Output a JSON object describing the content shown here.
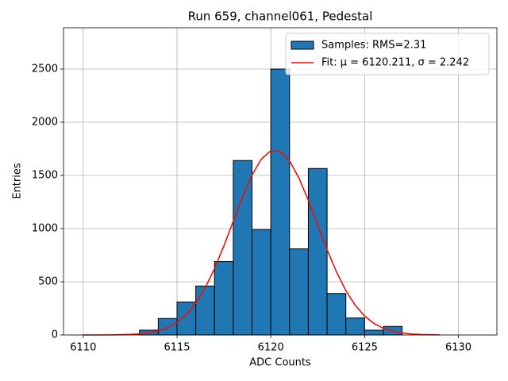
{
  "chart_data": {
    "type": "histogram",
    "title": "Run 659, channel061, Pedestal",
    "xlabel": "ADC Counts",
    "ylabel": "Entries",
    "bins": [
      6110,
      6111,
      6112,
      6113,
      6114,
      6115,
      6116,
      6117,
      6118,
      6119,
      6120,
      6121,
      6122,
      6123,
      6124,
      6125,
      6126,
      6127,
      6128,
      6129,
      6130,
      6131
    ],
    "series": [
      {
        "name": "Samples: RMS=2.31",
        "color": "#1f77b4",
        "edgecolor": "#000000",
        "values": [
          0,
          0,
          0,
          45,
          155,
          310,
          460,
          690,
          1640,
          990,
          2500,
          810,
          1565,
          390,
          160,
          45,
          80,
          0,
          0,
          0,
          0
        ]
      }
    ],
    "fit": {
      "name": "Fit: μ = 6120.211, σ = 2.242",
      "color": "#e8120c",
      "x": [
        6110,
        6110.5,
        6111,
        6111.5,
        6112,
        6112.5,
        6113,
        6113.5,
        6114,
        6114.5,
        6115,
        6115.5,
        6116,
        6116.5,
        6117,
        6117.5,
        6118,
        6118.5,
        6119,
        6119.5,
        6120,
        6120.5,
        6121,
        6121.5,
        6122,
        6122.5,
        6123,
        6123.5,
        6124,
        6124.5,
        6125,
        6125.5,
        6126,
        6126.5,
        6127,
        6127.5,
        6128,
        6128.5,
        6129
      ],
      "values": [
        0,
        0,
        0,
        1,
        2,
        5,
        10,
        20,
        38,
        68,
        117,
        191,
        298,
        442,
        624,
        837,
        1070,
        1300,
        1504,
        1655,
        1732,
        1726,
        1636,
        1475,
        1266,
        1033,
        803,
        593,
        417,
        279,
        178,
        108,
        62,
        34,
        18,
        9,
        4,
        2,
        1
      ]
    },
    "xlim": [
      6108.95,
      6132.05
    ],
    "ylim": [
      0,
      2888
    ],
    "xticks": [
      6110,
      6115,
      6120,
      6125,
      6130
    ],
    "yticks": [
      0,
      500,
      1000,
      1500,
      2000,
      2500
    ],
    "grid": true,
    "legend": "upper right"
  }
}
